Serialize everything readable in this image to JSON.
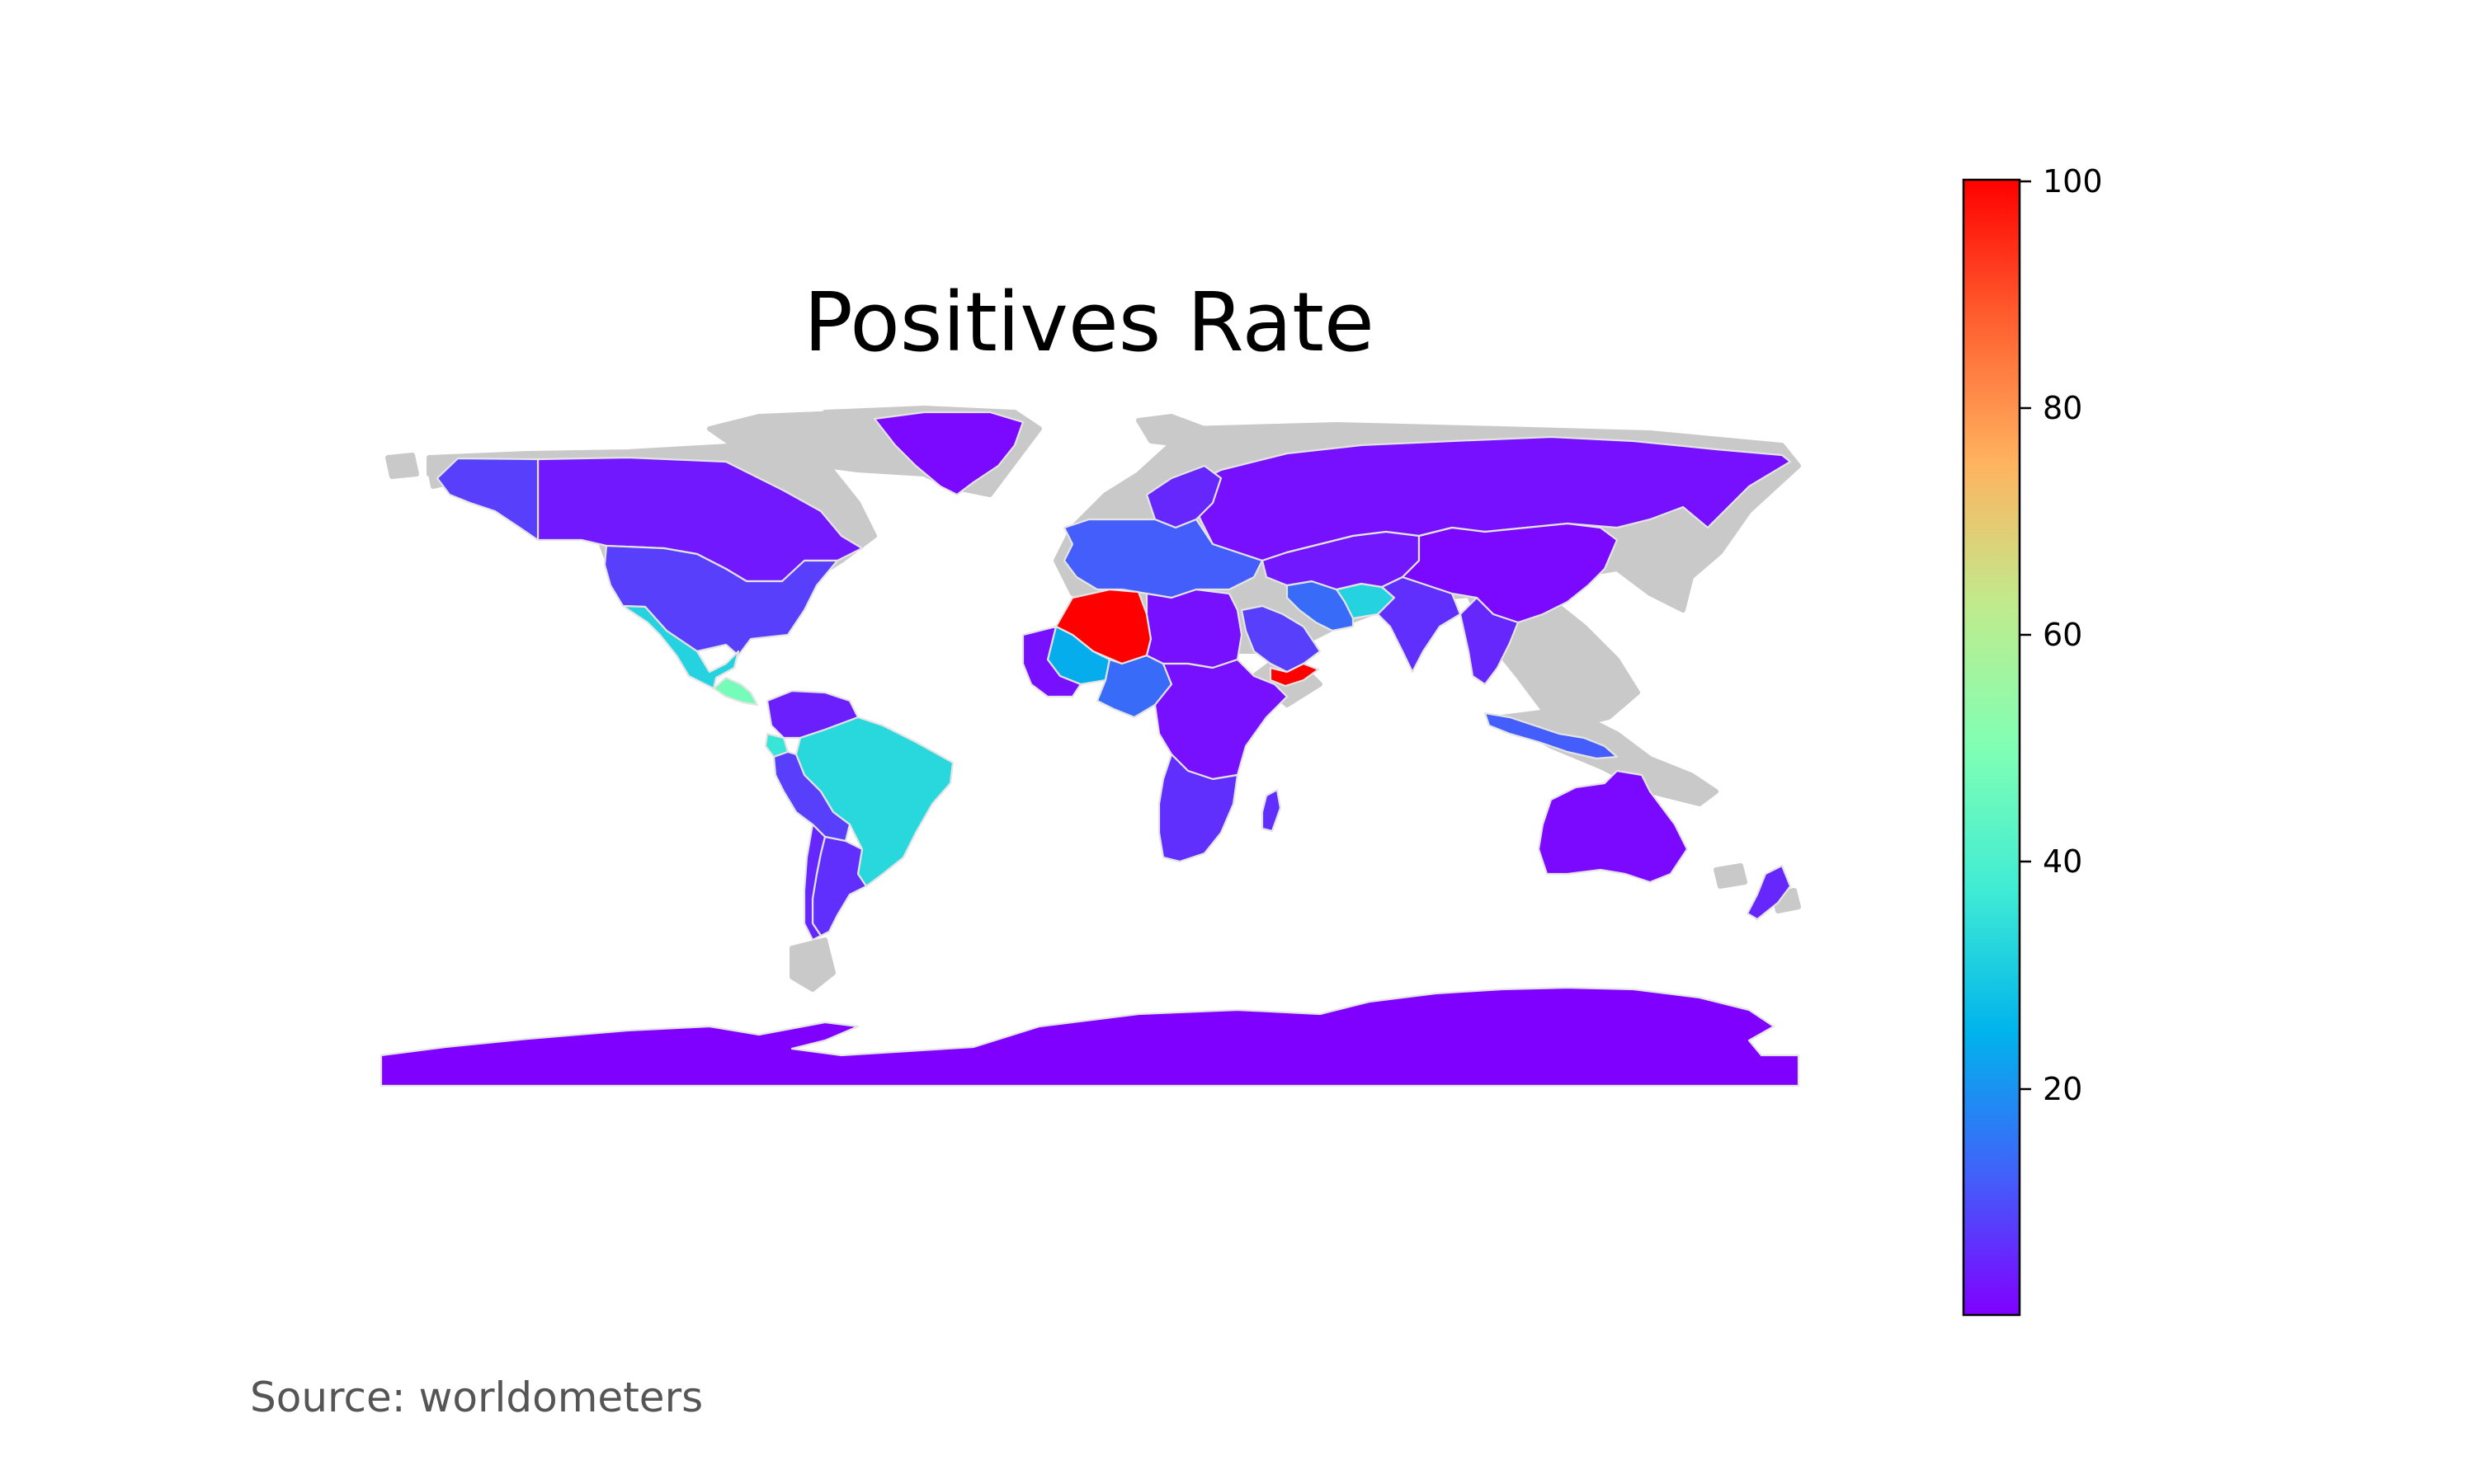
{
  "map": {
    "title": "Positives Rate",
    "source": "Source: worldometers",
    "colorscale": "rainbow",
    "colorbar": {
      "min": 0,
      "max": 100,
      "ticks": [
        "100",
        "80",
        "60",
        "40",
        "20"
      ],
      "stops": [
        "#8000ff",
        "#4062fa",
        "#00b4ec",
        "#40ecd4",
        "#80ffb4",
        "#c0eb8d",
        "#ffb360",
        "#ff6130",
        "#ff0000"
      ]
    },
    "border_color": "#e4e4e4",
    "missing_color": "#c9c9c9",
    "regions": [
      {
        "name": "Canada",
        "value": 3
      },
      {
        "name": "Alaska",
        "value": 8
      },
      {
        "name": "United States",
        "value": 8
      },
      {
        "name": "Mexico",
        "value": 32
      },
      {
        "name": "Central America",
        "value": 48
      },
      {
        "name": "Colombia / Venezuela",
        "value": 4
      },
      {
        "name": "Ecuador",
        "value": 36
      },
      {
        "name": "Brazil",
        "value": 33
      },
      {
        "name": "Peru / Bolivia",
        "value": 8
      },
      {
        "name": "Argentina",
        "value": 6
      },
      {
        "name": "Chile",
        "value": 5
      },
      {
        "name": "Greenland",
        "value": 1
      },
      {
        "name": "Russia",
        "value": 2
      },
      {
        "name": "Europe",
        "value": 5
      },
      {
        "name": "Scandinavia",
        "value": 12
      },
      {
        "name": "Algeria",
        "value": 100
      },
      {
        "name": "Mali / Mauritania",
        "value": 24
      },
      {
        "name": "West Africa",
        "value": 2
      },
      {
        "name": "Nigeria / Chad",
        "value": 14
      },
      {
        "name": "North Africa",
        "value": 2
      },
      {
        "name": "Central & East Africa",
        "value": 2
      },
      {
        "name": "Southern Africa",
        "value": 6
      },
      {
        "name": "Madagascar",
        "value": 6
      },
      {
        "name": "Saudi Arabia",
        "value": 8
      },
      {
        "name": "Yemen",
        "value": 100
      },
      {
        "name": "Iran",
        "value": 14
      },
      {
        "name": "Afghanistan",
        "value": 32
      },
      {
        "name": "Central Asia",
        "value": 3
      },
      {
        "name": "China",
        "value": 1
      },
      {
        "name": "India",
        "value": 6
      },
      {
        "name": "Southeast Asia",
        "value": 5
      },
      {
        "name": "Indonesia",
        "value": 12
      },
      {
        "name": "Australia",
        "value": 1
      },
      {
        "name": "New Zealand",
        "value": 5
      },
      {
        "name": "Antarctica",
        "value": 0
      }
    ]
  }
}
